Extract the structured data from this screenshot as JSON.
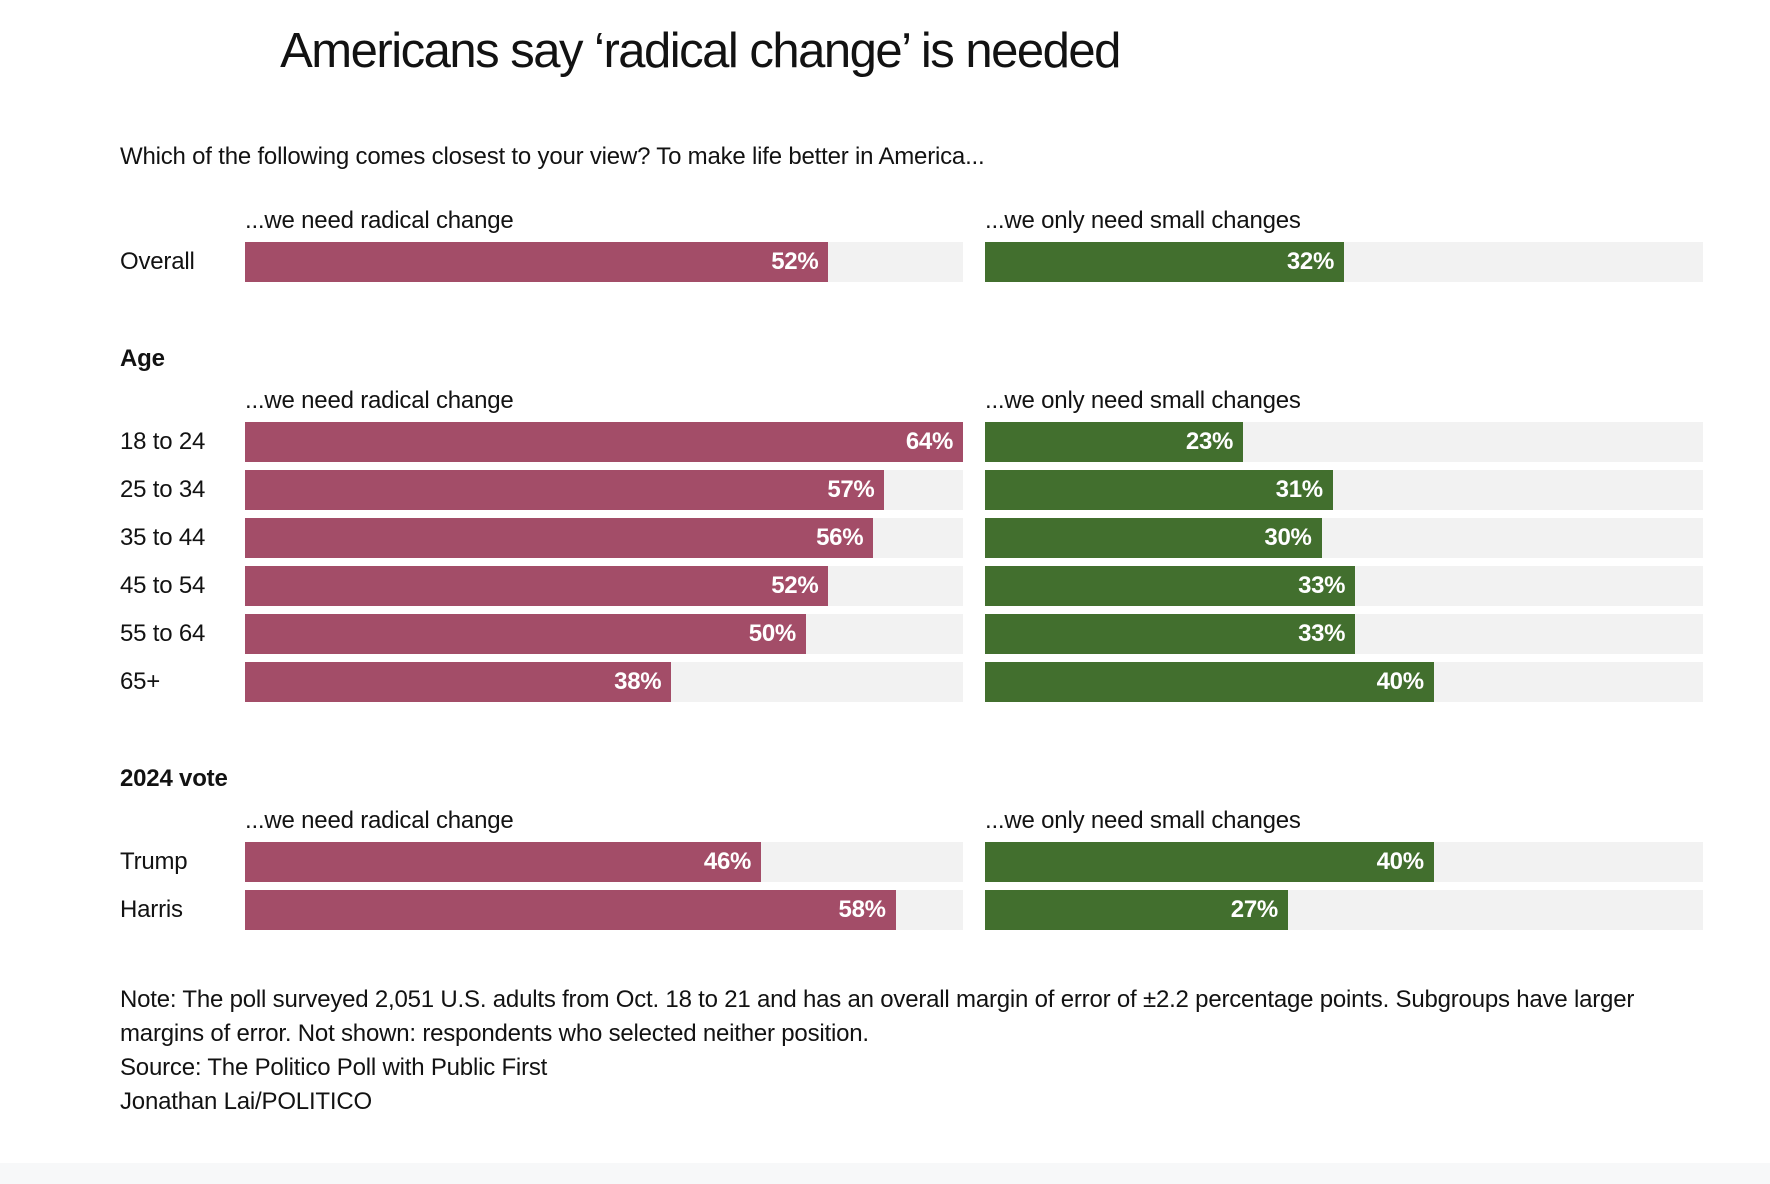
{
  "title": "Americans say ‘radical change’ is needed",
  "question": "Which of the following comes closest to your view? To make life better in America...",
  "notes": {
    "note": "Note: The poll surveyed 2,051 U.S. adults from Oct. 18 to 21 and has an overall margin of error of ±2.2 percentage points. Subgroups have larger margins of error. Not shown: respondents who selected neither position.",
    "source": "Source: The Politico Poll with Public First",
    "credit": "Jonathan Lai/POLITICO"
  },
  "colors": {
    "radical_change_bar": "#a34d68",
    "small_changes_bar": "#426f2e",
    "bar_track": "#f2f2f2",
    "footer_band": "#f7f8f9"
  },
  "chart_data": {
    "type": "bar",
    "orientation": "horizontal",
    "unit": "%",
    "value_labels": "inside-right",
    "xlim": [
      0,
      64
    ],
    "grid": false,
    "legend_position": "column-headers-above-bars",
    "series_names": [
      "...we need radical change",
      "...we only need small changes"
    ],
    "series_colors": [
      "#a34d68",
      "#426f2e"
    ],
    "sections": [
      {
        "header": "",
        "rows": [
          {
            "label": "Overall",
            "values": [
              52,
              32
            ]
          }
        ]
      },
      {
        "header": "Age",
        "rows": [
          {
            "label": "18 to 24",
            "values": [
              64,
              23
            ]
          },
          {
            "label": "25 to 34",
            "values": [
              57,
              31
            ]
          },
          {
            "label": "35 to 44",
            "values": [
              56,
              30
            ]
          },
          {
            "label": "45 to 54",
            "values": [
              52,
              33
            ]
          },
          {
            "label": "55 to 64",
            "values": [
              50,
              33
            ]
          },
          {
            "label": "65+",
            "values": [
              38,
              40
            ]
          }
        ]
      },
      {
        "header": "2024 vote",
        "rows": [
          {
            "label": "Trump",
            "values": [
              46,
              40
            ]
          },
          {
            "label": "Harris",
            "values": [
              58,
              27
            ]
          }
        ]
      }
    ]
  }
}
